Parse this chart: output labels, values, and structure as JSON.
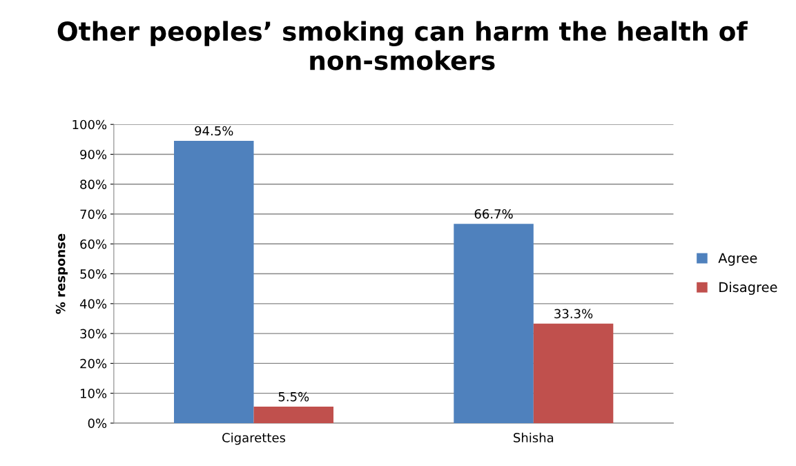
{
  "chart_data": {
    "type": "bar",
    "title": "Other peoples’ smoking can harm the health of non-smokers",
    "ylabel": "% response",
    "categories": [
      "Cigarettes",
      "Shisha"
    ],
    "series": [
      {
        "name": "Agree",
        "color": "#4f81bd",
        "values": [
          94.5,
          66.7
        ],
        "value_labels": [
          "94.5%",
          "66.7%"
        ]
      },
      {
        "name": "Disagree",
        "color": "#c0504d",
        "values": [
          5.5,
          33.3
        ],
        "value_labels": [
          "5.5%",
          "33.3%"
        ]
      }
    ],
    "ylim": [
      0,
      100
    ],
    "yticks": [
      {
        "value": 0,
        "label": "0%"
      },
      {
        "value": 10,
        "label": "10%"
      },
      {
        "value": 20,
        "label": "20%"
      },
      {
        "value": 30,
        "label": "30%"
      },
      {
        "value": 40,
        "label": "40%"
      },
      {
        "value": 50,
        "label": "50%"
      },
      {
        "value": 60,
        "label": "60%"
      },
      {
        "value": 70,
        "label": "70%"
      },
      {
        "value": 80,
        "label": "80%"
      },
      {
        "value": 90,
        "label": "90%"
      },
      {
        "value": 100,
        "label": "100%"
      }
    ],
    "grid": "y",
    "legend": "right"
  }
}
